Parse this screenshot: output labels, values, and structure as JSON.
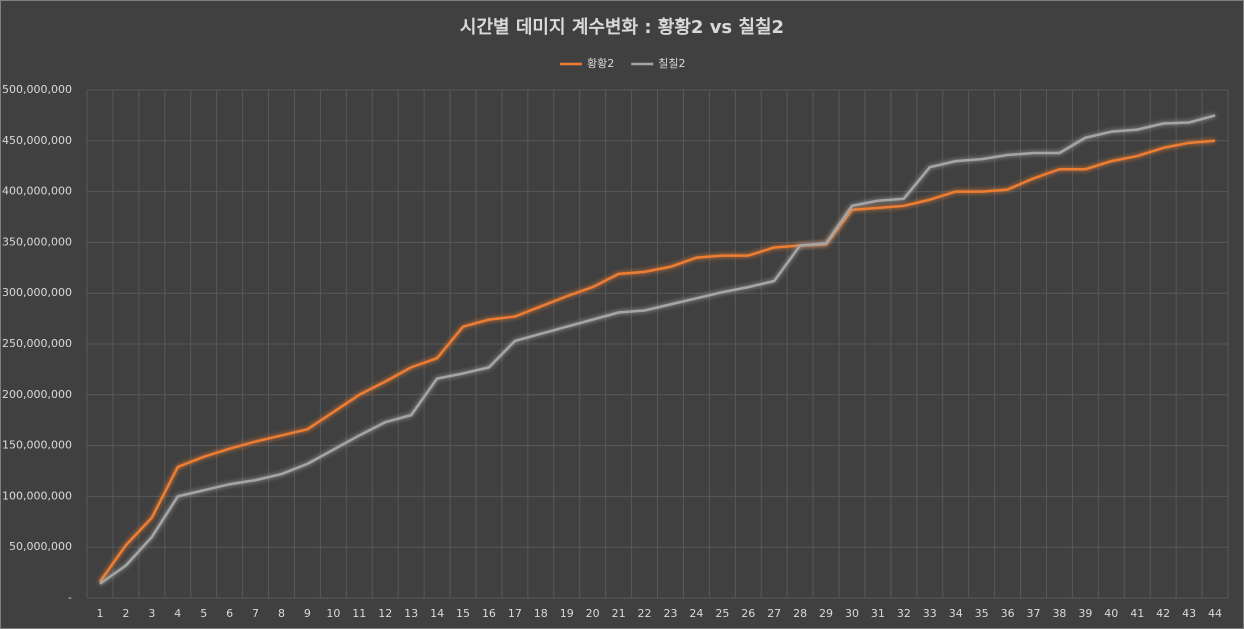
{
  "chart_data": {
    "type": "line",
    "title": "시간별 데미지 계수변화 : 황황2 vs 칠칠2",
    "categories": [
      "1",
      "2",
      "3",
      "4",
      "5",
      "6",
      "7",
      "8",
      "9",
      "10",
      "11",
      "12",
      "13",
      "14",
      "15",
      "16",
      "17",
      "18",
      "19",
      "20",
      "21",
      "22",
      "23",
      "24",
      "25",
      "26",
      "27",
      "28",
      "29",
      "30",
      "31",
      "32",
      "33",
      "34",
      "35",
      "36",
      "37",
      "38",
      "39",
      "40",
      "41",
      "42",
      "43",
      "44"
    ],
    "series": [
      {
        "name": "황황2",
        "color": "#ed7d31",
        "values": [
          16000000,
          52000000,
          79000000,
          129000000,
          139000000,
          147000000,
          154000000,
          160000000,
          166000000,
          183000000,
          200000000,
          213000000,
          227000000,
          236000000,
          267000000,
          274000000,
          277000000,
          287000000,
          297000000,
          306000000,
          319000000,
          321000000,
          326000000,
          335000000,
          337000000,
          337000000,
          345000000,
          347000000,
          348000000,
          382000000,
          384000000,
          386000000,
          392000000,
          400000000,
          400000000,
          402000000,
          413000000,
          422000000,
          422000000,
          430000000,
          435000000,
          443000000,
          448000000,
          450000000
        ]
      },
      {
        "name": "칠칠2",
        "color": "#a5a5a5",
        "values": [
          14000000,
          32000000,
          60000000,
          100000000,
          106000000,
          112000000,
          116000000,
          122000000,
          132000000,
          146000000,
          160000000,
          173000000,
          180000000,
          216000000,
          221000000,
          227000000,
          253000000,
          260000000,
          267000000,
          274000000,
          281000000,
          283000000,
          289000000,
          295000000,
          301000000,
          306000000,
          312000000,
          347000000,
          349000000,
          386000000,
          391000000,
          393000000,
          424000000,
          430000000,
          432000000,
          436000000,
          438000000,
          438000000,
          453000000,
          459000000,
          461000000,
          467000000,
          468000000,
          475000000
        ]
      }
    ],
    "ylim": [
      0,
      500000000
    ],
    "yticks": [
      {
        "value": 0,
        "label": "-"
      },
      {
        "value": 50000000,
        "label": "50,000,000"
      },
      {
        "value": 100000000,
        "label": "100,000,000"
      },
      {
        "value": 150000000,
        "label": "150,000,000"
      },
      {
        "value": 200000000,
        "label": "200,000,000"
      },
      {
        "value": 250000000,
        "label": "250,000,000"
      },
      {
        "value": 300000000,
        "label": "300,000,000"
      },
      {
        "value": 350000000,
        "label": "350,000,000"
      },
      {
        "value": 400000000,
        "label": "400,000,000"
      },
      {
        "value": 450000000,
        "label": "450,000,000"
      },
      {
        "value": 500000000,
        "label": "500,000,000"
      }
    ],
    "grid": true,
    "legend": "top"
  }
}
